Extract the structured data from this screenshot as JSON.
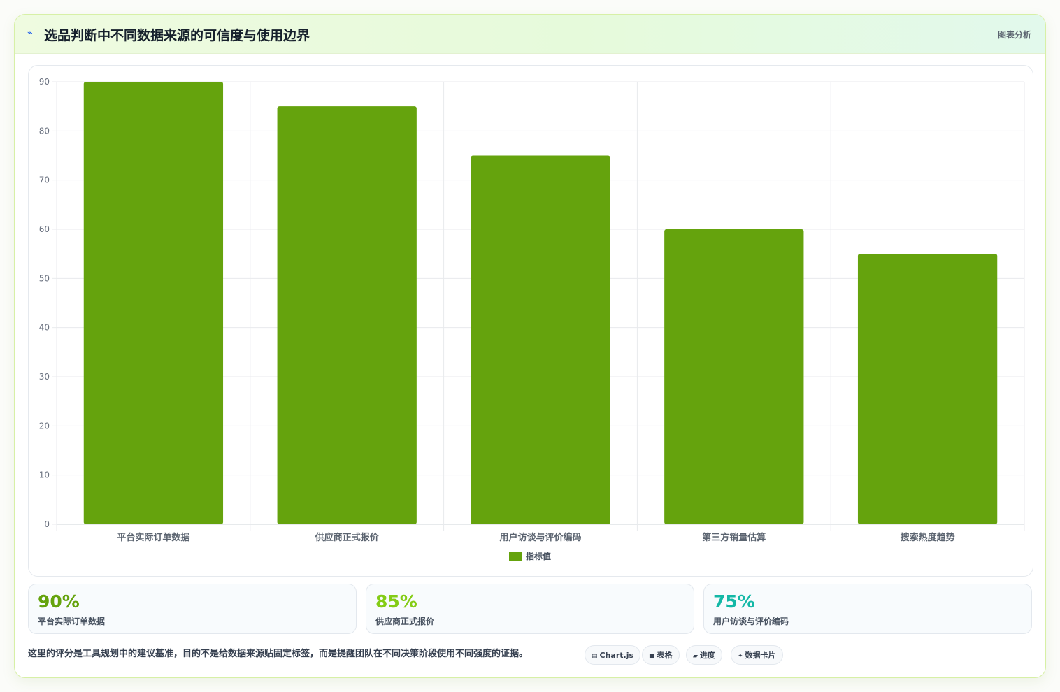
{
  "header": {
    "icon": "chart-line-icon",
    "title": "选品判断中不同数据来源的可信度与使用边界",
    "tag": "图表分析"
  },
  "chart_data": {
    "type": "bar",
    "categories": [
      "平台实际订单数据",
      "供应商正式报价",
      "用户访谈与评价编码",
      "第三方销量估算",
      "搜索热度趋势"
    ],
    "series": [
      {
        "name": "指标值",
        "values": [
          90,
          85,
          75,
          60,
          55
        ],
        "color": "#65a30d"
      }
    ],
    "ylim": [
      0,
      90
    ],
    "yticks": [
      0,
      10,
      20,
      30,
      40,
      50,
      60,
      70,
      80,
      90
    ],
    "grid": true,
    "legend": "bottom"
  },
  "cards": [
    {
      "value": "90%",
      "label": "平台实际订单数据",
      "color": "#65a30d"
    },
    {
      "value": "85%",
      "label": "供应商正式报价",
      "color": "#84cc16"
    },
    {
      "value": "75%",
      "label": "用户访谈与评价编码",
      "color": "#14b8a6"
    }
  ],
  "footnote": "这里的评分是工具规划中的建议基准，目的不是给数据来源贴固定标签，而是提醒团队在不同决策阶段使用不同强度的证据。",
  "chips": [
    {
      "icon": "chart-icon",
      "label": "Chart.js"
    },
    {
      "icon": "table-icon",
      "label": "表格"
    },
    {
      "icon": "progress-icon",
      "label": "进度"
    },
    {
      "icon": "sparkle-icon",
      "label": "数据卡片"
    }
  ]
}
